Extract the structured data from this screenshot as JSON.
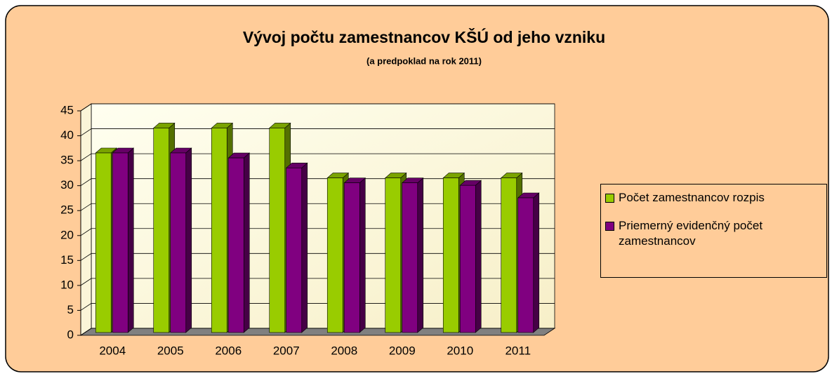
{
  "chart_data": {
    "type": "bar",
    "title": "Vývoj počtu zamestnancov KŠÚ od jeho vzniku",
    "subtitle": "(a predpoklad na rok 2011)",
    "categories": [
      "2004",
      "2005",
      "2006",
      "2007",
      "2008",
      "2009",
      "2010",
      "2011"
    ],
    "series": [
      {
        "name": "Počet zamestnancov rozpis",
        "color": "#99CC00",
        "values": [
          36,
          41,
          41,
          41,
          31,
          31,
          31,
          31
        ]
      },
      {
        "name": "Priemerný evidenčný počet zamestnancov",
        "color": "#800080",
        "values": [
          36,
          36,
          35,
          33,
          30,
          30,
          29.5,
          27
        ]
      }
    ],
    "ylim": [
      0,
      45
    ],
    "yticks": [
      0,
      5,
      10,
      15,
      20,
      25,
      30,
      35,
      40,
      45
    ],
    "grid": true,
    "legend": "right"
  }
}
